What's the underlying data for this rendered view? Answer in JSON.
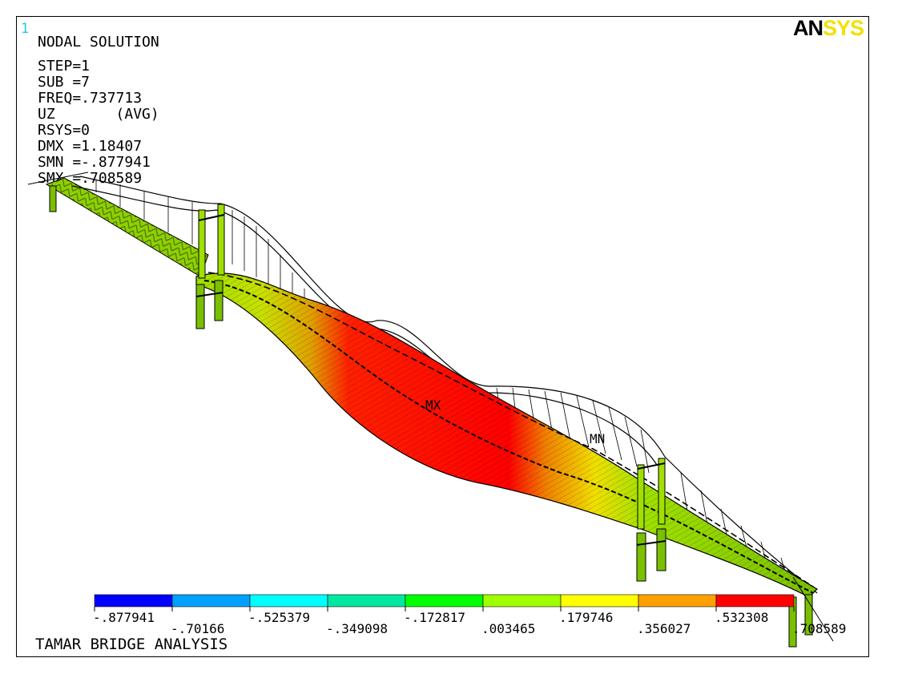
{
  "window_number": "1",
  "logo": {
    "left": "AN",
    "right": "SYS"
  },
  "info": {
    "title": "NODAL SOLUTION",
    "lines": [
      "STEP=1",
      "SUB =7",
      "FREQ=.737713",
      "UZ       (AVG)",
      "RSYS=0",
      "DMX =1.18407",
      "SMN =-.877941",
      "SMX =.708589"
    ]
  },
  "markers": {
    "mx": "MX",
    "mn": "MN"
  },
  "legend": {
    "values": [
      "-.877941",
      "-.70166",
      "-.525379",
      "-.349098",
      "-.172817",
      ".003465",
      ".179746",
      ".356027",
      ".532308",
      ".708589"
    ],
    "colors": [
      "#0000ff",
      "#00a0ff",
      "#00ffff",
      "#00e8a0",
      "#00ff00",
      "#a0ff00",
      "#ffff00",
      "#ffa000",
      "#ff0000"
    ]
  },
  "footer": "TAMAR BRIDGE ANALYSIS"
}
